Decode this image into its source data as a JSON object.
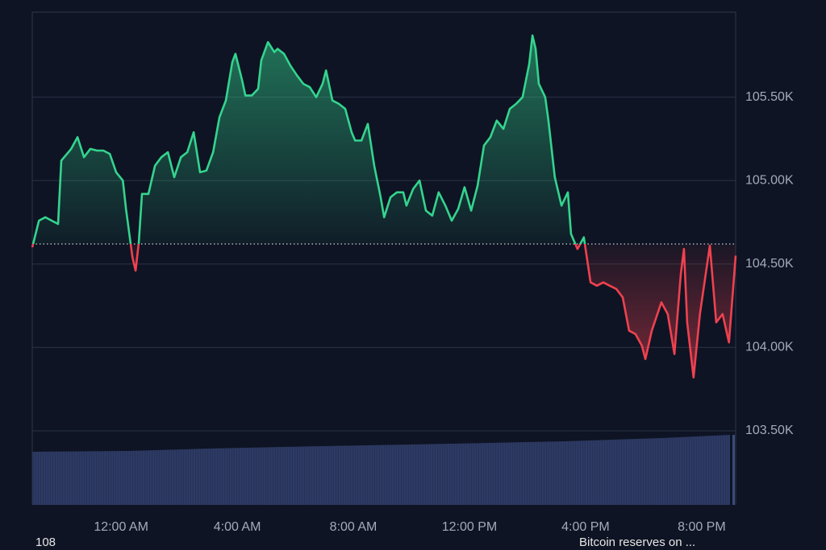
{
  "chart_data": {
    "type": "line",
    "x": [
      -3.06,
      -2.83,
      -2.61,
      -2.39,
      -2.17,
      -2.06,
      -1.72,
      -1.5,
      -1.28,
      -1.06,
      -0.83,
      -0.61,
      -0.39,
      -0.17,
      0.06,
      0.17,
      0.39,
      0.5,
      0.61,
      0.72,
      0.94,
      1.17,
      1.39,
      1.61,
      1.83,
      2.06,
      2.28,
      2.5,
      2.72,
      2.94,
      3.17,
      3.39,
      3.61,
      3.83,
      3.94,
      4.17,
      4.28,
      4.5,
      4.72,
      4.83,
      5.06,
      5.28,
      5.39,
      5.61,
      5.83,
      6.06,
      6.28,
      6.5,
      6.72,
      6.94,
      7.06,
      7.28,
      7.5,
      7.72,
      7.94,
      8.06,
      8.28,
      8.5,
      8.72,
      8.94,
      9.06,
      9.28,
      9.5,
      9.72,
      9.83,
      10.06,
      10.28,
      10.5,
      10.72,
      10.94,
      11.17,
      11.39,
      11.61,
      11.83,
      12.06,
      12.28,
      12.5,
      12.72,
      12.94,
      13.17,
      13.39,
      13.61,
      13.83,
      14.06,
      14.17,
      14.28,
      14.39,
      14.61,
      14.72,
      14.94,
      15.17,
      15.39,
      15.5,
      15.72,
      15.94,
      16.17,
      16.39,
      16.61,
      16.83,
      17.06,
      17.28,
      17.5,
      17.72,
      17.94,
      18.06,
      18.28,
      18.61,
      18.83,
      19.06,
      19.28,
      19.39,
      19.5,
      19.72,
      19.94,
      20.28,
      20.5,
      20.72,
      20.94,
      21.17
    ],
    "series": [
      {
        "color": "#34d48e",
        "down_color": "#f0414f",
        "values": [
          104.6,
          104.76,
          104.78,
          104.76,
          104.74,
          105.12,
          105.19,
          105.26,
          105.14,
          105.19,
          105.18,
          105.18,
          105.16,
          105.05,
          105.0,
          104.83,
          104.54,
          104.46,
          104.63,
          104.92,
          104.92,
          105.09,
          105.14,
          105.17,
          105.02,
          105.14,
          105.17,
          105.29,
          105.05,
          105.06,
          105.17,
          105.38,
          105.48,
          105.71,
          105.76,
          105.6,
          105.51,
          105.51,
          105.55,
          105.72,
          105.83,
          105.77,
          105.79,
          105.76,
          105.69,
          105.63,
          105.58,
          105.56,
          105.5,
          105.58,
          105.66,
          105.48,
          105.46,
          105.43,
          105.29,
          105.24,
          105.24,
          105.34,
          105.09,
          104.9,
          104.78,
          104.9,
          104.93,
          104.93,
          104.85,
          104.95,
          105.0,
          104.82,
          104.79,
          104.93,
          104.85,
          104.76,
          104.83,
          104.96,
          104.82,
          104.97,
          105.21,
          105.26,
          105.36,
          105.31,
          105.43,
          105.46,
          105.5,
          105.7,
          105.87,
          105.79,
          105.58,
          105.5,
          105.36,
          105.02,
          104.85,
          104.93,
          104.68,
          104.59,
          104.66,
          104.39,
          104.37,
          104.39,
          104.37,
          104.35,
          104.3,
          104.1,
          104.08,
          104.01,
          103.93,
          104.1,
          104.27,
          104.2,
          103.96,
          104.44,
          104.59,
          104.15,
          103.82,
          104.2,
          104.61,
          104.15,
          104.2,
          104.03,
          104.55
        ]
      }
    ],
    "baseline": 104.62,
    "xlim": [
      -3.06,
      21.17
    ],
    "xticks": [
      {
        "value": 0,
        "label": "12:00 AM"
      },
      {
        "value": 4,
        "label": "4:00 AM"
      },
      {
        "value": 8,
        "label": "8:00 AM"
      },
      {
        "value": 12,
        "label": "12:00 PM"
      },
      {
        "value": 16,
        "label": "4:00 PM"
      },
      {
        "value": 20,
        "label": "8:00 PM"
      }
    ],
    "ylim": [
      103.056,
      106.01
    ],
    "yticks": [
      {
        "value": 103.5,
        "label": "103.50K"
      },
      {
        "value": 104,
        "label": "104.00K"
      },
      {
        "value": 104.5,
        "label": "104.50K"
      },
      {
        "value": 105,
        "label": "105.00K"
      },
      {
        "value": 105.5,
        "label": "105.50K"
      }
    ],
    "grid": true
  },
  "footer_left": "108",
  "footer_right": "Bitcoin reserves on ..."
}
